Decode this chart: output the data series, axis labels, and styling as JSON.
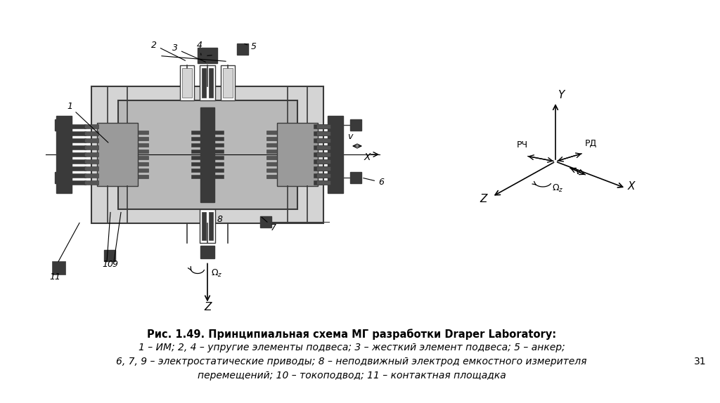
{
  "bg_color": "#ffffff",
  "fig_width": 10.24,
  "fig_height": 5.74,
  "title_line1": "Рис. 1.49. Принципиальная схема МГ разработки Draper Laboratory:",
  "title_line2": "1 – ИМ; 2, 4 – упругие элементы подвеса; 3 – жесткий элемент подвеса; 5 – анкер;",
  "title_line3": "6, 7, 9 – электростатические приводы; 8 – неподвижный электрод емкостного измерителя",
  "title_line4": "перемещений; 10 – токоподвод; 11 – контактная площадка",
  "page_num": "31",
  "dark_gray": "#3a3a3a",
  "mid_gray": "#888888",
  "light_gray": "#b8b8b8",
  "lighter_gray": "#d4d4d4",
  "white": "#ffffff",
  "black": "#000000"
}
